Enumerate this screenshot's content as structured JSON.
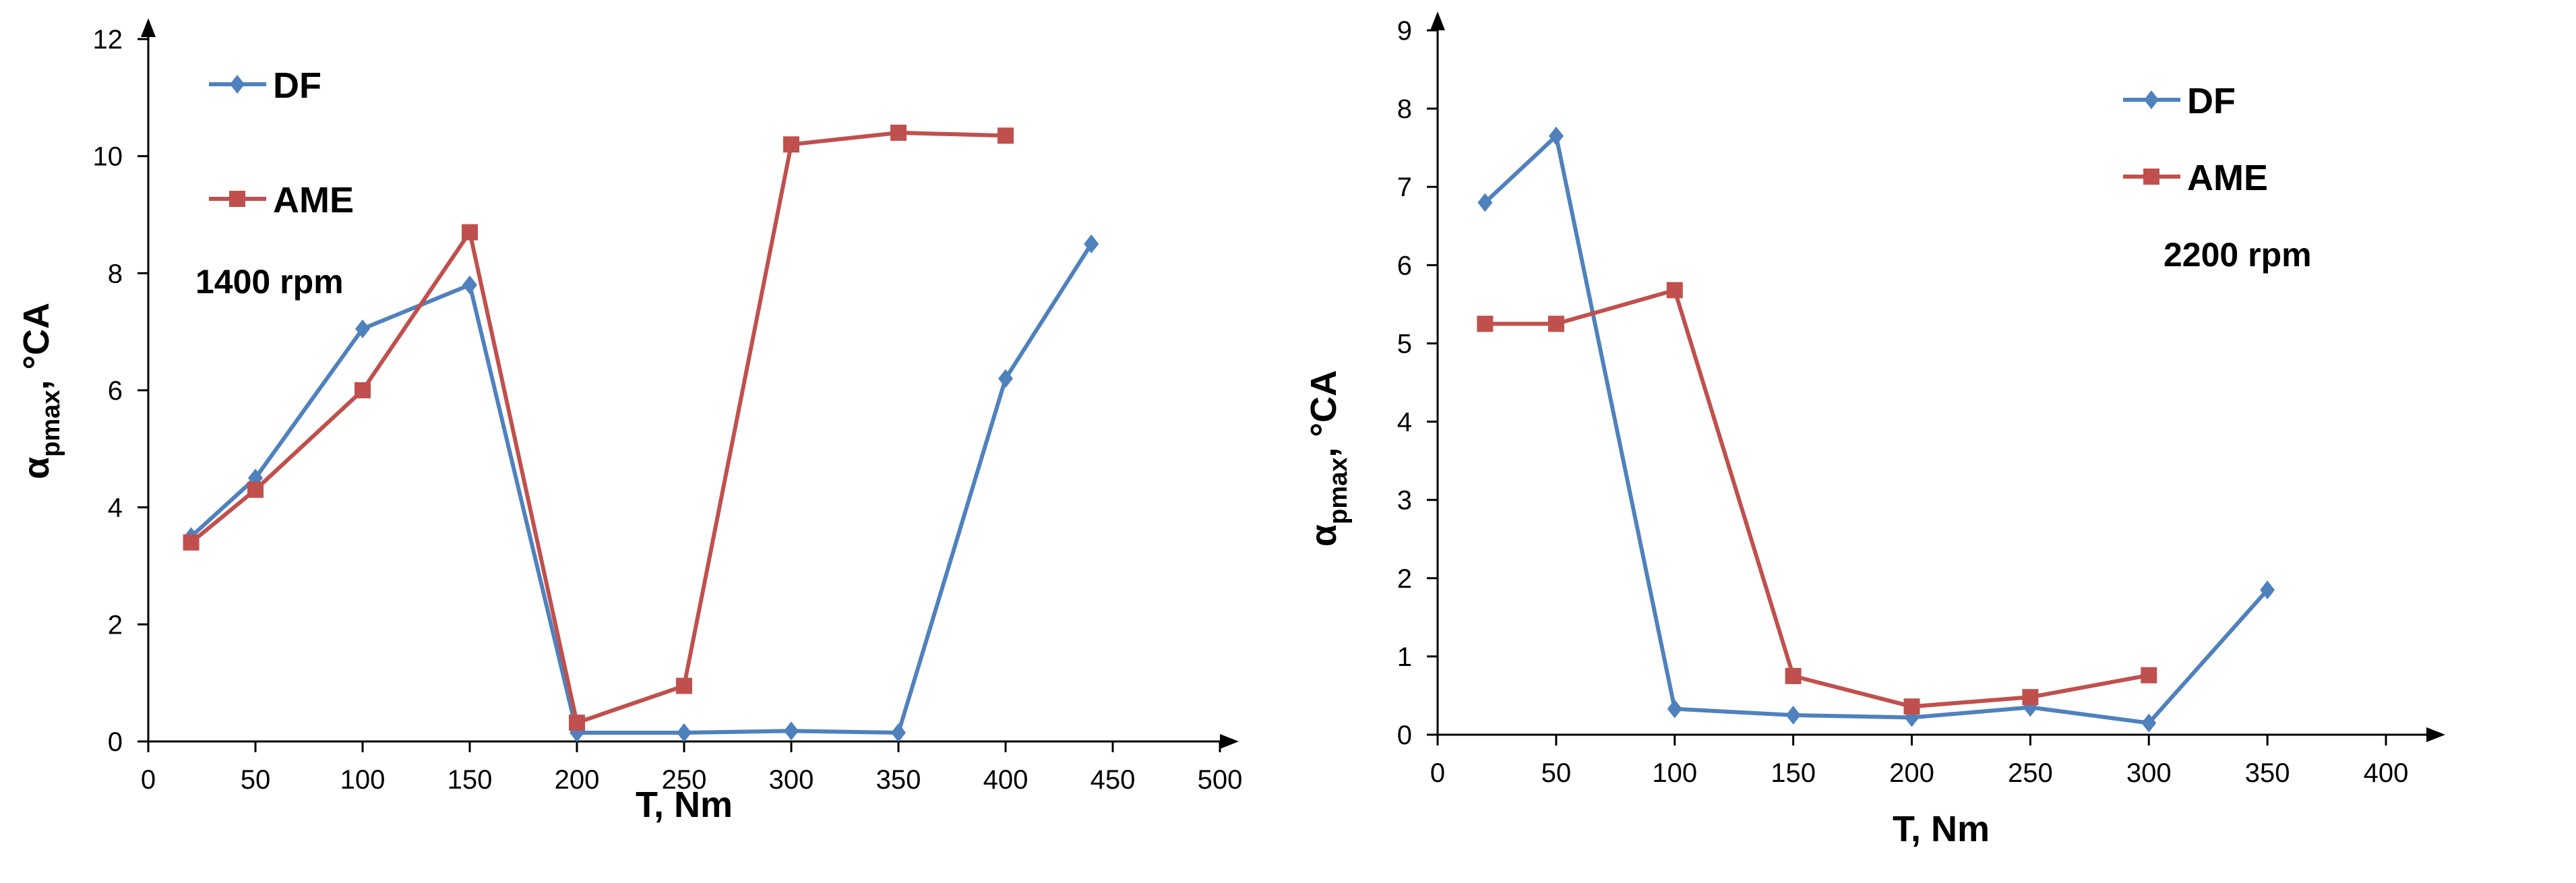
{
  "chart_data": [
    {
      "type": "line",
      "title": "",
      "annotation": "1400 rpm",
      "xlabel": "T, Nm",
      "ylabel_main": "α",
      "ylabel_sub": "pmax",
      "ylabel_unit": ", °CA",
      "xlim": [
        0,
        500
      ],
      "ylim": [
        0,
        12
      ],
      "xticks": [
        0,
        50,
        100,
        150,
        200,
        250,
        300,
        350,
        400,
        450,
        500
      ],
      "yticks": [
        0,
        2,
        4,
        6,
        8,
        10,
        12
      ],
      "grid": false,
      "legend_position": "top-left",
      "series": [
        {
          "name": "DF",
          "color": "#4F81BD",
          "marker": "diamond",
          "x": [
            20,
            50,
            100,
            150,
            200,
            250,
            300,
            350,
            400,
            440
          ],
          "y": [
            3.5,
            4.5,
            7.05,
            7.8,
            0.15,
            0.15,
            0.18,
            0.15,
            6.2,
            8.5
          ]
        },
        {
          "name": "AME",
          "color": "#C0504D",
          "marker": "square",
          "x": [
            20,
            50,
            100,
            150,
            200,
            250,
            300,
            350,
            400
          ],
          "y": [
            3.4,
            4.3,
            6.0,
            8.7,
            0.32,
            0.95,
            10.2,
            10.4,
            10.35
          ]
        }
      ]
    },
    {
      "type": "line",
      "title": "",
      "annotation": "2200 rpm",
      "xlabel": "T, Nm",
      "ylabel_main": "α",
      "ylabel_sub": "pmax",
      "ylabel_unit": ", °CA",
      "xlim": [
        0,
        400
      ],
      "ylim": [
        0,
        9
      ],
      "xticks": [
        0,
        50,
        100,
        150,
        200,
        250,
        300,
        350,
        400
      ],
      "yticks": [
        0,
        1,
        2,
        3,
        4,
        5,
        6,
        7,
        8,
        9
      ],
      "grid": false,
      "legend_position": "top-right",
      "series": [
        {
          "name": "DF",
          "color": "#4F81BD",
          "marker": "diamond",
          "x": [
            20,
            50,
            100,
            150,
            200,
            250,
            300,
            350
          ],
          "y": [
            6.8,
            7.65,
            0.33,
            0.25,
            0.22,
            0.35,
            0.15,
            1.85
          ]
        },
        {
          "name": "AME",
          "color": "#C0504D",
          "marker": "square",
          "x": [
            20,
            50,
            100,
            150,
            200,
            250,
            300
          ],
          "y": [
            5.25,
            5.25,
            5.68,
            0.75,
            0.36,
            0.48,
            0.76
          ]
        }
      ]
    }
  ]
}
